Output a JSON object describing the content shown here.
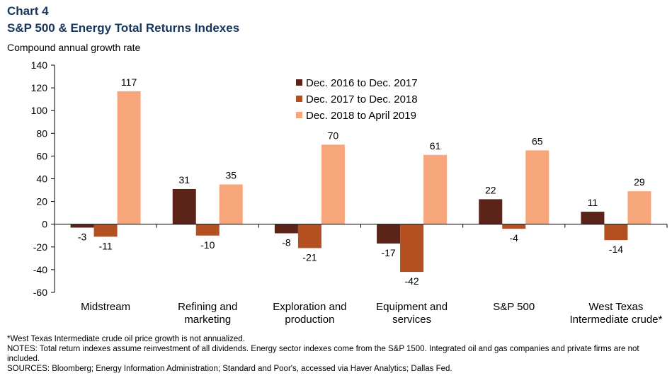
{
  "header": {
    "chart_number": "Chart 4",
    "title": "S&P 500 & Energy Total Returns Indexes",
    "ylabel": "Compound annual growth rate"
  },
  "colors": {
    "title": "#17365d",
    "series": [
      "#5c2419",
      "#b4501f",
      "#f7a57b"
    ]
  },
  "chart_data": {
    "type": "bar",
    "title": "S&P 500 & Energy Total Returns Indexes",
    "ylabel": "Compound annual growth rate",
    "xlabel": "",
    "ylim": [
      -60,
      140
    ],
    "yticks": [
      -60,
      -40,
      -20,
      0,
      20,
      40,
      60,
      80,
      100,
      120,
      140
    ],
    "grid": false,
    "legend_position": "top-center",
    "categories": [
      [
        "Midstream"
      ],
      [
        "Refining and",
        "marketing"
      ],
      [
        "Exploration and",
        "production"
      ],
      [
        "Equipment and",
        "services"
      ],
      [
        "S&P 500"
      ],
      [
        "West Texas",
        "Intermediate crude*"
      ]
    ],
    "series": [
      {
        "name": "Dec. 2016 to Dec. 2017",
        "values": [
          -3,
          31,
          -8,
          -17,
          22,
          11
        ]
      },
      {
        "name": "Dec. 2017 to Dec. 2018",
        "values": [
          -11,
          -10,
          -21,
          -42,
          -4,
          -14
        ]
      },
      {
        "name": "Dec. 2018 to April 2019",
        "values": [
          117,
          35,
          70,
          61,
          65,
          29
        ]
      }
    ]
  },
  "footnotes": {
    "asterisk": "*West Texas Intermediate crude oil price growth is not annualized.",
    "notes": "NOTES: Total return indexes assume reinvestment of all dividends. Energy sector indexes come from the S&P 1500. Integrated oil and gas companies and private firms are not included.",
    "sources": "SOURCES: Bloomberg; Energy Information Administration; Standard and Poor's, accessed via Haver Analytics; Dallas Fed."
  }
}
